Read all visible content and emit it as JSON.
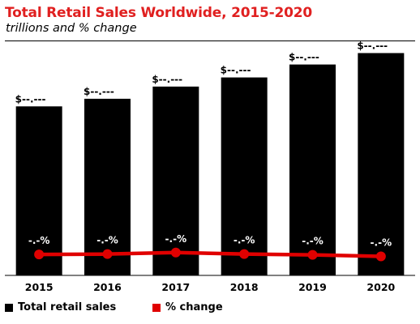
{
  "chart_data": {
    "type": "bar",
    "title": "Total Retail Sales Worldwide, 2015-2020",
    "subtitle": "trillions and % change",
    "categories": [
      "2015",
      "2016",
      "2017",
      "2018",
      "2019",
      "2020"
    ],
    "series": [
      {
        "name": "Total retail sales",
        "type": "bar",
        "color": "#000000",
        "values": [
          22.2,
          23.2,
          24.8,
          26.0,
          27.7,
          29.2
        ],
        "labels": [
          "$--.---",
          "$--.---",
          "$--.---",
          "$--.---",
          "$--.---",
          "$--.---"
        ]
      },
      {
        "name": "% change",
        "type": "line",
        "color": "#e00000",
        "values": [
          5.5,
          5.6,
          6.0,
          5.6,
          5.4,
          5.0
        ],
        "labels": [
          "-.-%",
          "-.-%",
          "-.-%",
          "-.-%",
          "-.-%",
          "-.-%"
        ]
      }
    ],
    "ylim": [
      0,
      30
    ],
    "y2lim": [
      0,
      60
    ],
    "grid": false,
    "legend_position": "bottom-left"
  }
}
